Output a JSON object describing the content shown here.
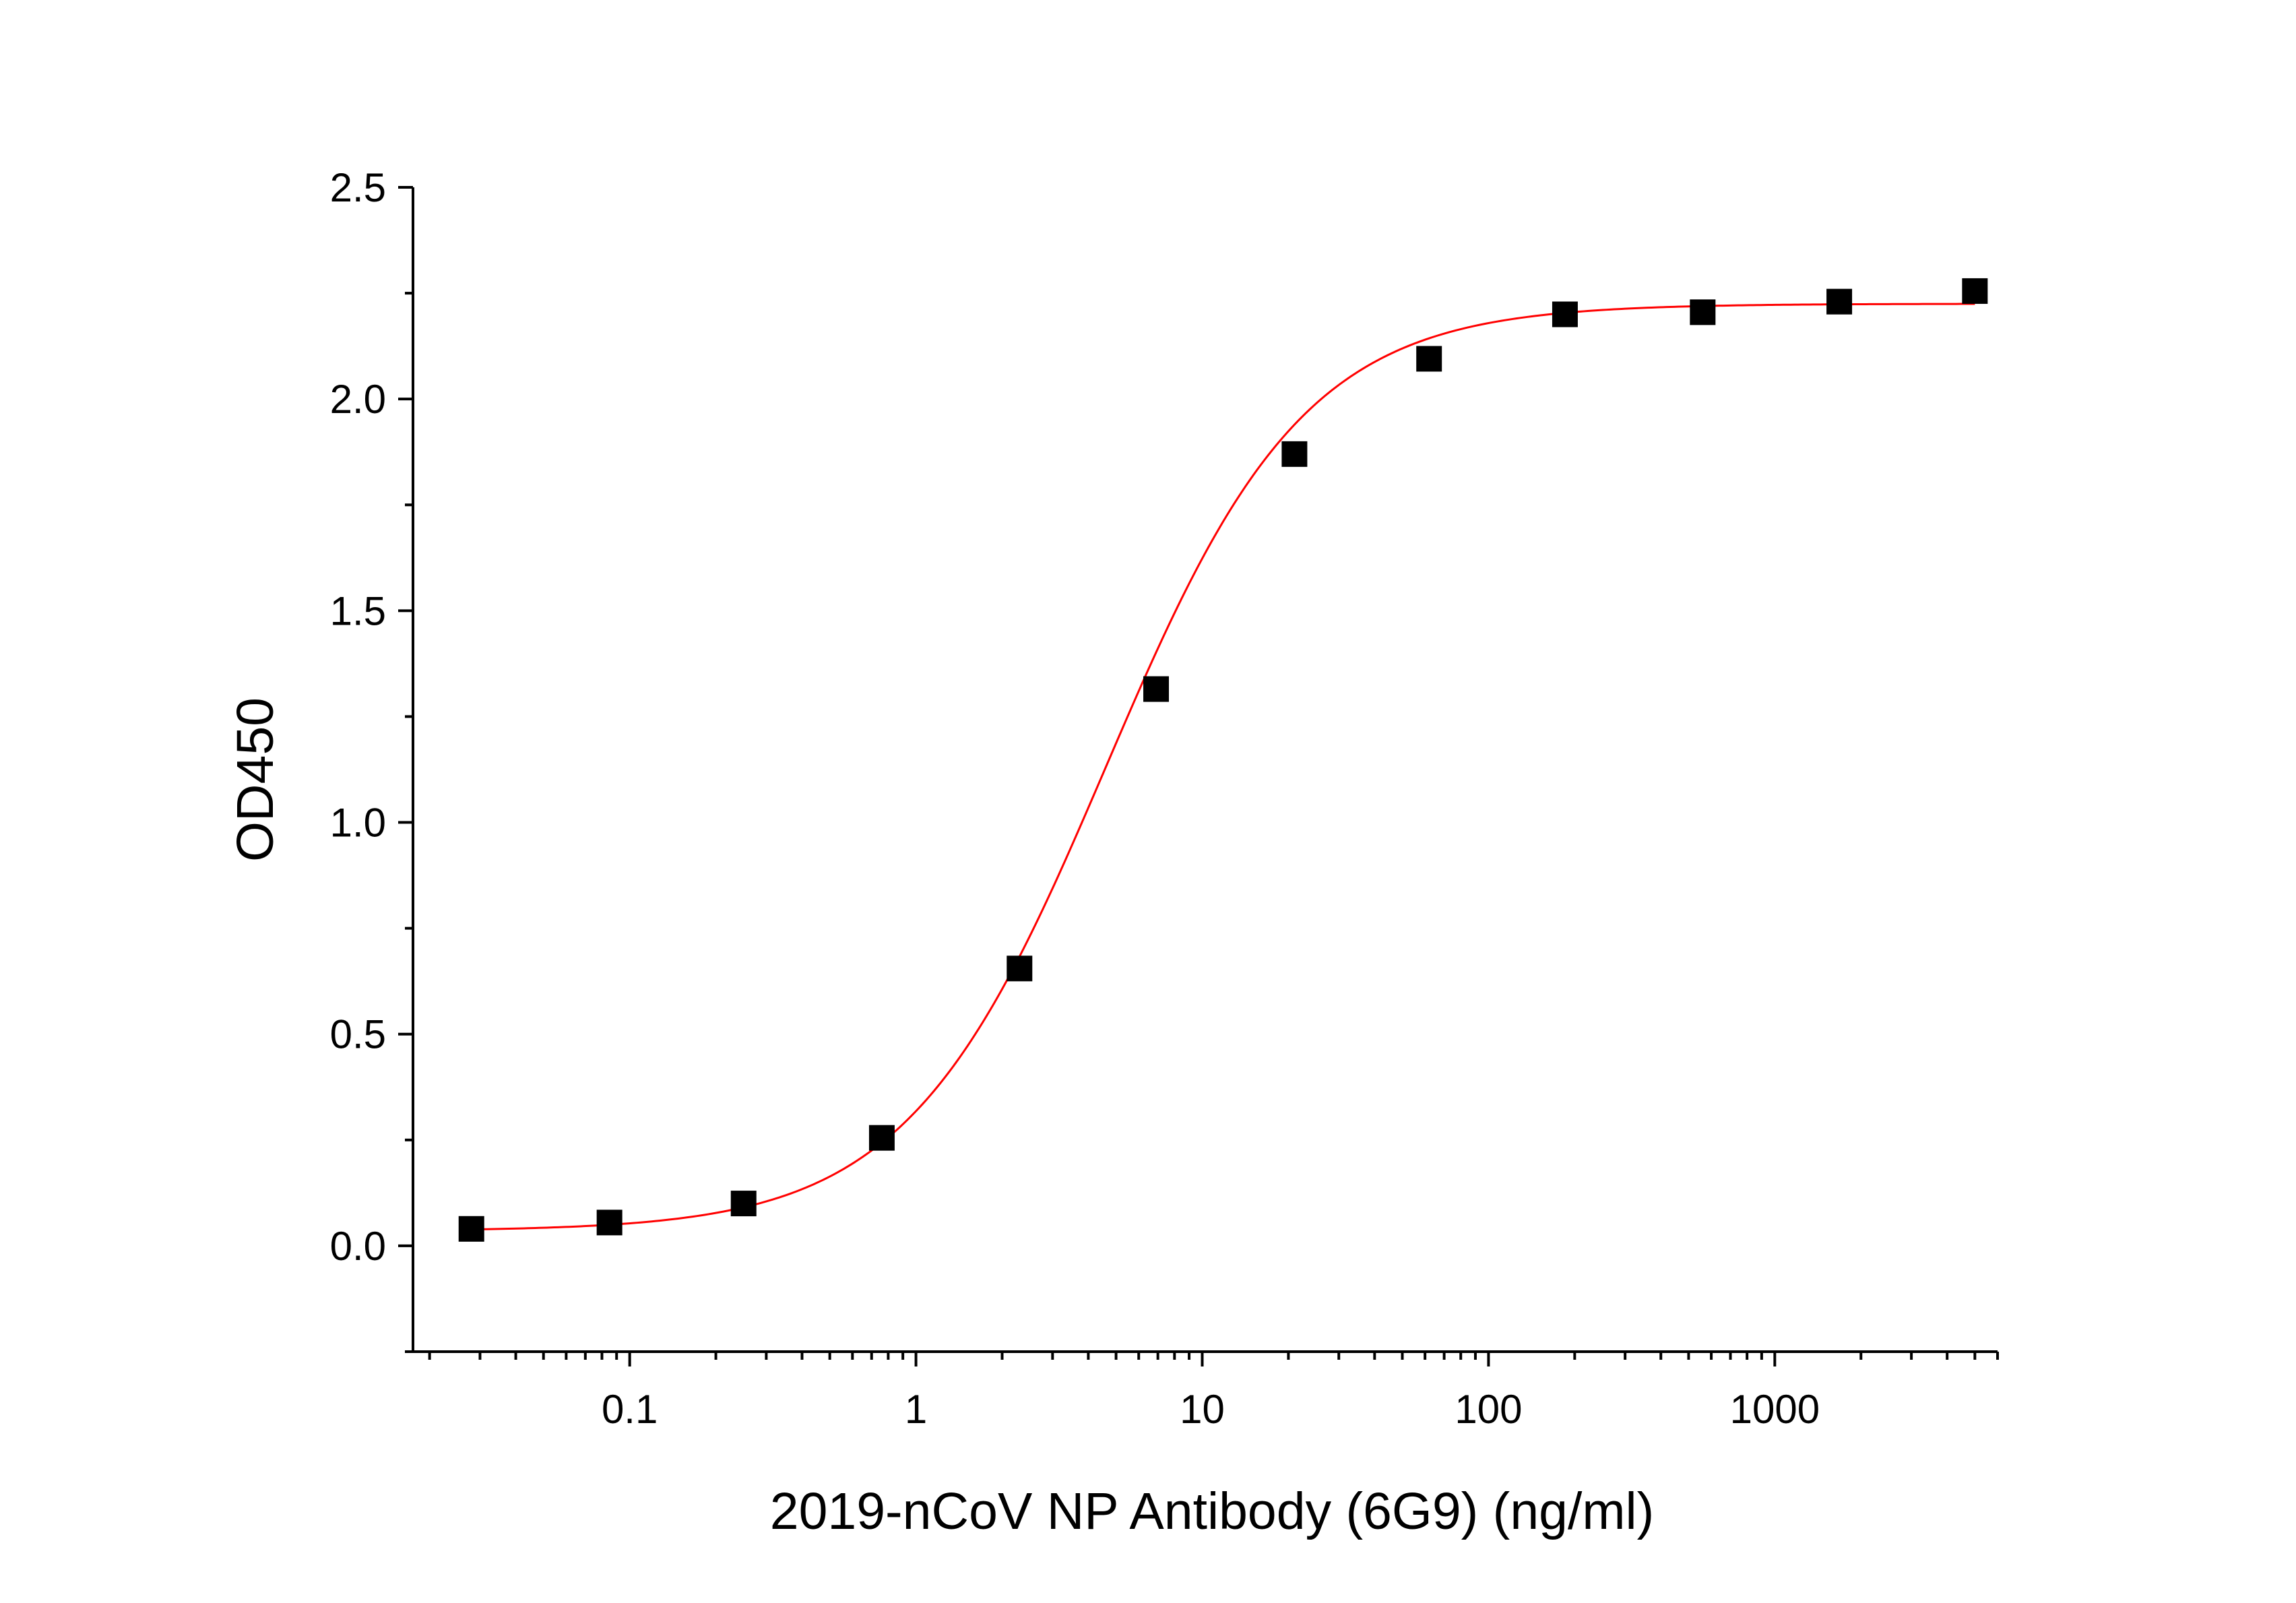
{
  "chart_data": {
    "type": "scatter",
    "title": "",
    "xlabel": "2019-nCoV NP Antibody (6G9) (ng/ml)",
    "ylabel": "OD450",
    "x_scale": "log",
    "xlim": [
      0.0175,
      6000
    ],
    "ylim": [
      -0.25,
      2.5
    ],
    "x_ticks": [
      {
        "value": 0.1,
        "label": "0.1"
      },
      {
        "value": 1,
        "label": "1"
      },
      {
        "value": 10,
        "label": "10"
      },
      {
        "value": 100,
        "label": "100"
      },
      {
        "value": 1000,
        "label": "1000"
      }
    ],
    "y_ticks": [
      {
        "value": 0.0,
        "label": "0.0"
      },
      {
        "value": 0.5,
        "label": "0.5"
      },
      {
        "value": 1.0,
        "label": "1.0"
      },
      {
        "value": 1.5,
        "label": "1.5"
      },
      {
        "value": 2.0,
        "label": "2.0"
      },
      {
        "value": 2.5,
        "label": "2.5"
      }
    ],
    "grid": false,
    "legend": "none",
    "series": [
      {
        "marker": "square",
        "color": "#000000",
        "points": [
          {
            "x": 0.028,
            "y": 0.04
          },
          {
            "x": 0.085,
            "y": 0.055
          },
          {
            "x": 0.25,
            "y": 0.1
          },
          {
            "x": 0.76,
            "y": 0.255
          },
          {
            "x": 2.3,
            "y": 0.655
          },
          {
            "x": 6.9,
            "y": 1.315
          },
          {
            "x": 21,
            "y": 1.87
          },
          {
            "x": 62,
            "y": 2.095
          },
          {
            "x": 185,
            "y": 2.2
          },
          {
            "x": 560,
            "y": 2.205
          },
          {
            "x": 1680,
            "y": 2.23
          },
          {
            "x": 5000,
            "y": 2.255
          }
        ]
      }
    ],
    "fit_curve": {
      "type": "4PL",
      "color": "#ff0000",
      "bottom": 0.035,
      "top": 2.225,
      "ec50": 4.6,
      "hill": 1.25
    }
  }
}
